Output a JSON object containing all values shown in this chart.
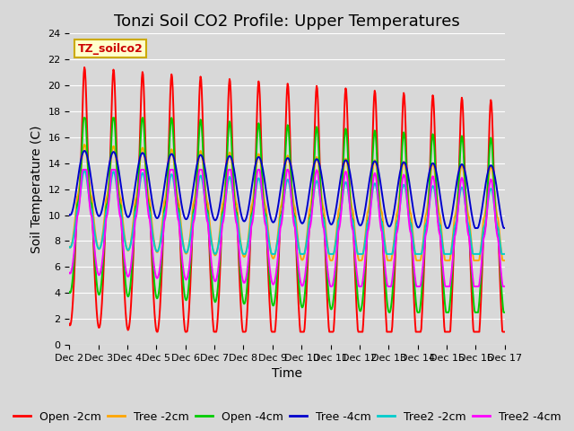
{
  "title": "Tonzi Soil CO2 Profile: Upper Temperatures",
  "ylabel": "Soil Temperature (C)",
  "xlabel": "Time",
  "ylim": [
    0,
    24
  ],
  "yticks": [
    0,
    2,
    4,
    6,
    8,
    10,
    12,
    14,
    16,
    18,
    20,
    22,
    24
  ],
  "x_tick_labels": [
    "Dec 2",
    "Dec 3",
    "Dec 4",
    "Dec 5",
    "Dec 6",
    "Dec 7",
    "Dec 8",
    "Dec 9",
    "Dec 10",
    "Dec 11",
    "Dec 12",
    "Dec 13",
    "Dec 14",
    "Dec 15",
    "Dec 16",
    "Dec 17"
  ],
  "title_fontsize": 13,
  "label_fontsize": 10,
  "tick_fontsize": 8,
  "legend_fontsize": 9,
  "watermark_text": "TZ_soilco2",
  "fig_facecolor": "#d8d8d8",
  "plot_bg_color": "#d8d8d8",
  "grid_color": "#ffffff",
  "lines": [
    {
      "label": "Open -2cm",
      "color": "#ff0000",
      "lw": 1.4
    },
    {
      "label": "Tree -2cm",
      "color": "#ffa500",
      "lw": 1.4
    },
    {
      "label": "Open -4cm",
      "color": "#00cc00",
      "lw": 1.4
    },
    {
      "label": "Tree -4cm",
      "color": "#0000cc",
      "lw": 1.4
    },
    {
      "label": "Tree2 -2cm",
      "color": "#00cccc",
      "lw": 1.4
    },
    {
      "label": "Tree2 -4cm",
      "color": "#ff00ff",
      "lw": 1.4
    }
  ]
}
